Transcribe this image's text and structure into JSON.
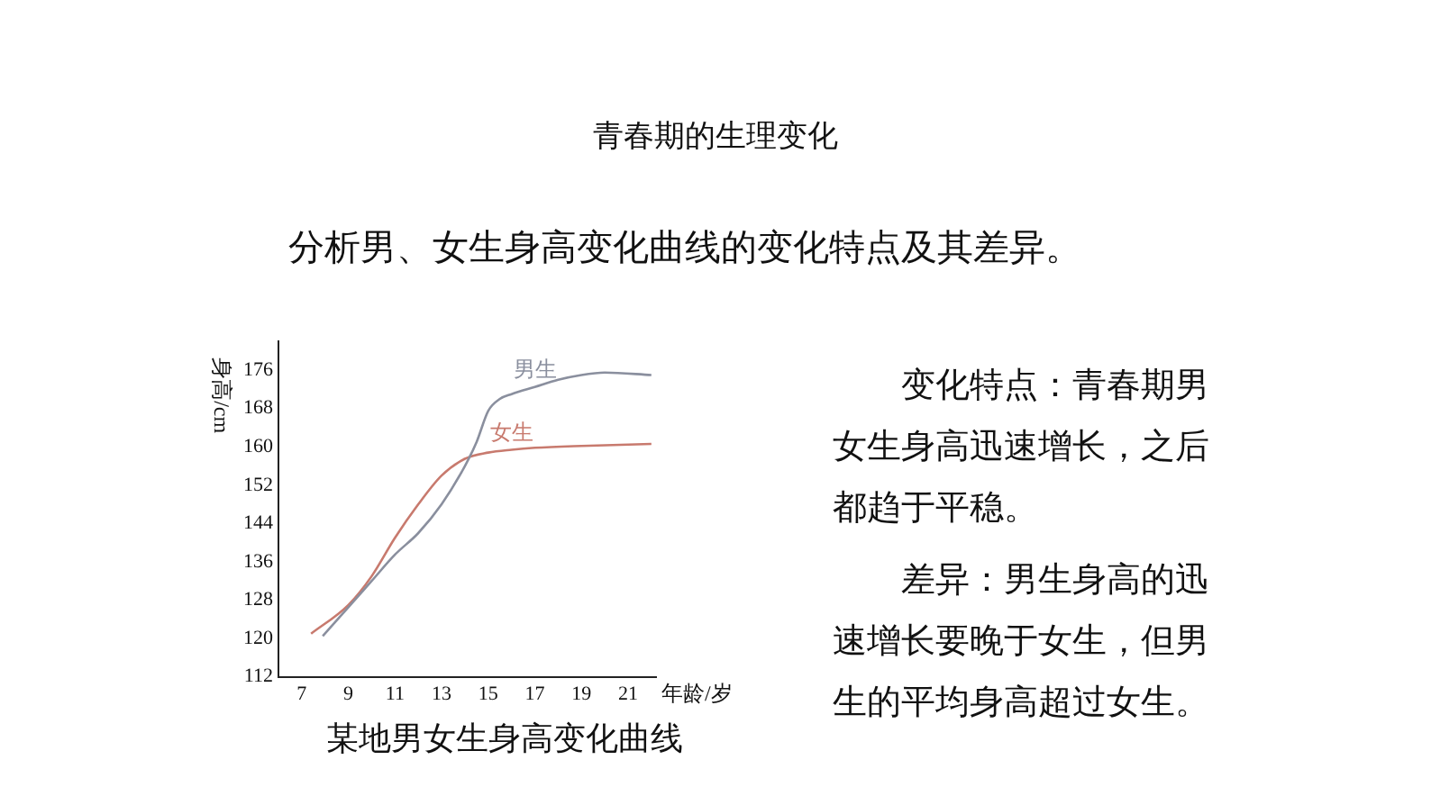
{
  "chart_data": {
    "type": "line",
    "title": "青春期的生理变化",
    "subtitle": "分析男、女生身高变化曲线的变化特点及其差异。",
    "xlabel": "年龄/岁",
    "ylabel": "身高/cm",
    "annotations": [
      "某地男女生身高变化曲线",
      "变化特点：青春期男女生身高迅速增长，之后都趋于平稳。",
      "差异：男生身高的迅速增长要晚于女生，但男生的平均身高超过女生。"
    ],
    "xlim": [
      6,
      22.2
    ],
    "xticks": [
      7,
      9,
      11,
      13,
      15,
      17,
      19,
      21
    ],
    "ylim": [
      112,
      182
    ],
    "yticks": [
      112,
      120,
      128,
      136,
      144,
      152,
      160,
      168,
      176
    ],
    "grid": false,
    "legend": false,
    "marker": "none",
    "line_style": "solid",
    "series": [
      {
        "name": "男生",
        "color": "#8a8f9e",
        "x": [
          7.9,
          9,
          10,
          11,
          12,
          13,
          14,
          14.5,
          15,
          15.5,
          16,
          17,
          18,
          19,
          20,
          22
        ],
        "values": [
          120.5,
          126.5,
          132,
          137.5,
          142,
          148,
          156,
          161,
          167.5,
          170,
          171,
          172.5,
          174,
          175,
          175.5,
          175
        ]
      },
      {
        "name": "女生",
        "color": "#c87a6e",
        "x": [
          7.4,
          9,
          10,
          11,
          12,
          13,
          14,
          15,
          16,
          17,
          19,
          22
        ],
        "values": [
          121,
          127,
          133,
          141,
          148,
          154,
          157.5,
          158.8,
          159.4,
          159.8,
          160.2,
          160.6
        ]
      }
    ]
  }
}
